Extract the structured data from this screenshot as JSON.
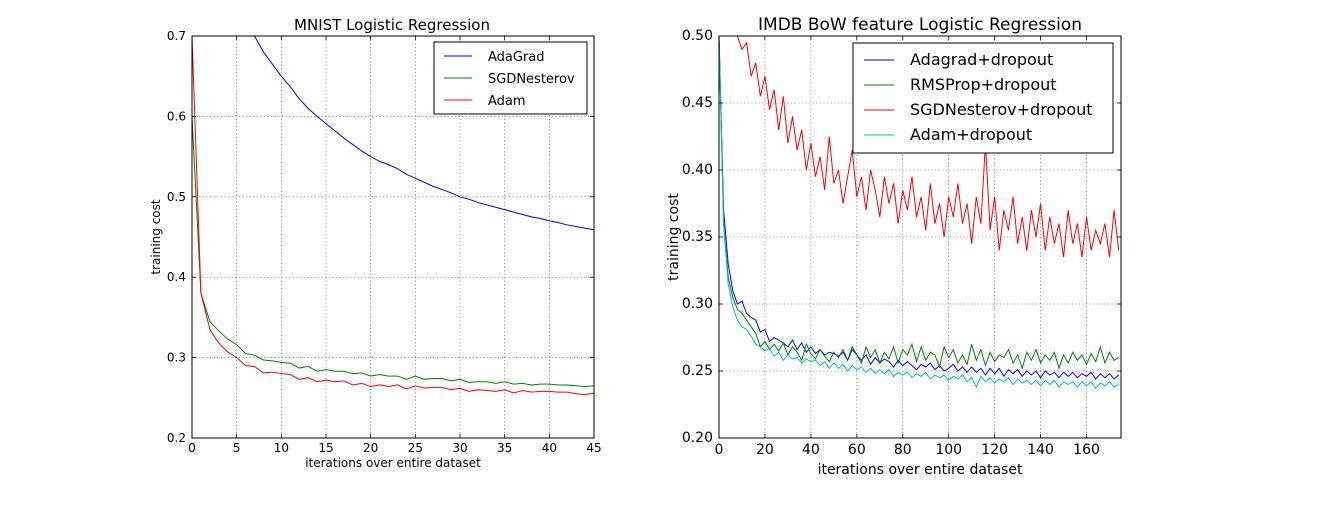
{
  "chart_data": [
    {
      "type": "line",
      "title": "MNIST Logistic Regression",
      "xlabel": "iterations over entire dataset",
      "ylabel": "training cost",
      "xlim": [
        0,
        45
      ],
      "ylim": [
        0.2,
        0.7
      ],
      "xticks": [
        "0",
        "5",
        "10",
        "15",
        "20",
        "25",
        "30",
        "35",
        "40",
        "45"
      ],
      "yticks": [
        "0.2",
        "0.3",
        "0.4",
        "0.5",
        "0.6",
        "0.7"
      ],
      "grid": true,
      "legend_position": "top-right",
      "series": [
        {
          "name": "AdaGrad",
          "color": "#0000ff",
          "x": [
            7,
            8,
            9,
            10,
            11,
            12,
            13,
            14,
            15,
            16,
            17,
            18,
            19,
            20,
            21,
            22,
            23,
            24,
            25,
            26,
            27,
            28,
            29,
            30,
            31,
            32,
            33,
            34,
            35,
            36,
            37,
            38,
            39,
            40,
            41,
            42,
            43,
            44,
            45
          ],
          "y": [
            0.7,
            0.68,
            0.665,
            0.65,
            0.637,
            0.622,
            0.61,
            0.6,
            0.591,
            0.582,
            0.573,
            0.565,
            0.557,
            0.55,
            0.544,
            0.54,
            0.535,
            0.528,
            0.523,
            0.518,
            0.513,
            0.509,
            0.505,
            0.5,
            0.497,
            0.493,
            0.49,
            0.487,
            0.484,
            0.481,
            0.478,
            0.475,
            0.473,
            0.47,
            0.468,
            0.465,
            0.463,
            0.461,
            0.459
          ]
        },
        {
          "name": "SGDNesterov",
          "color": "#008000",
          "x": [
            0,
            1,
            2,
            3,
            4,
            5,
            6,
            7,
            8,
            9,
            10,
            11,
            12,
            13,
            14,
            15,
            16,
            17,
            18,
            19,
            20,
            21,
            22,
            23,
            24,
            25,
            26,
            27,
            28,
            29,
            30,
            31,
            32,
            33,
            34,
            35,
            36,
            37,
            38,
            39,
            40,
            41,
            42,
            43,
            44,
            45
          ],
          "y": [
            0.6,
            0.38,
            0.345,
            0.333,
            0.323,
            0.316,
            0.305,
            0.303,
            0.297,
            0.296,
            0.294,
            0.293,
            0.287,
            0.289,
            0.283,
            0.285,
            0.283,
            0.283,
            0.28,
            0.281,
            0.277,
            0.279,
            0.277,
            0.277,
            0.273,
            0.277,
            0.273,
            0.274,
            0.274,
            0.271,
            0.273,
            0.269,
            0.27,
            0.27,
            0.268,
            0.27,
            0.267,
            0.268,
            0.266,
            0.267,
            0.267,
            0.266,
            0.266,
            0.265,
            0.264,
            0.265
          ]
        },
        {
          "name": "Adam",
          "color": "#ff0000",
          "x": [
            0,
            1,
            2,
            3,
            4,
            5,
            6,
            7,
            8,
            9,
            10,
            11,
            12,
            13,
            14,
            15,
            16,
            17,
            18,
            19,
            20,
            21,
            22,
            23,
            24,
            25,
            26,
            27,
            28,
            29,
            30,
            31,
            32,
            33,
            34,
            35,
            36,
            37,
            38,
            39,
            40,
            41,
            42,
            43,
            44,
            45
          ],
          "y": [
            0.7,
            0.38,
            0.335,
            0.318,
            0.307,
            0.3,
            0.29,
            0.289,
            0.281,
            0.282,
            0.28,
            0.279,
            0.273,
            0.275,
            0.27,
            0.272,
            0.27,
            0.271,
            0.266,
            0.268,
            0.264,
            0.266,
            0.264,
            0.266,
            0.261,
            0.265,
            0.262,
            0.263,
            0.263,
            0.26,
            0.262,
            0.258,
            0.26,
            0.259,
            0.258,
            0.26,
            0.256,
            0.259,
            0.257,
            0.258,
            0.258,
            0.257,
            0.257,
            0.255,
            0.254,
            0.256
          ]
        }
      ]
    },
    {
      "type": "line",
      "title": "IMDB BoW feature Logistic Regression",
      "xlabel": "iterations over entire dataset",
      "ylabel": "training cost",
      "xlim": [
        0,
        175
      ],
      "ylim": [
        0.2,
        0.5
      ],
      "xticks": [
        "0",
        "20",
        "40",
        "60",
        "80",
        "100",
        "120",
        "140",
        "160"
      ],
      "yticks": [
        "0.20",
        "0.25",
        "0.30",
        "0.35",
        "0.40",
        "0.45",
        "0.50"
      ],
      "grid": true,
      "legend_position": "top-right",
      "series": [
        {
          "name": "Adagrad+dropout",
          "color": "#0000ff",
          "x": [
            0,
            2,
            4,
            6,
            8,
            10,
            12,
            14,
            16,
            18,
            20,
            22,
            24,
            26,
            28,
            30,
            32,
            34,
            36,
            38,
            40,
            42,
            44,
            46,
            48,
            50,
            52,
            54,
            56,
            58,
            60,
            62,
            64,
            66,
            68,
            70,
            72,
            74,
            76,
            78,
            80,
            82,
            84,
            86,
            88,
            90,
            92,
            94,
            96,
            98,
            100,
            102,
            104,
            106,
            108,
            110,
            112,
            114,
            116,
            118,
            120,
            122,
            124,
            126,
            128,
            130,
            132,
            134,
            136,
            138,
            140,
            142,
            144,
            146,
            148,
            150,
            152,
            154,
            156,
            158,
            160,
            162,
            164,
            166,
            168,
            170,
            172,
            174
          ],
          "y": [
            0.5,
            0.37,
            0.33,
            0.31,
            0.3,
            0.302,
            0.293,
            0.29,
            0.288,
            0.279,
            0.281,
            0.272,
            0.275,
            0.273,
            0.271,
            0.268,
            0.273,
            0.266,
            0.271,
            0.264,
            0.268,
            0.263,
            0.266,
            0.262,
            0.264,
            0.263,
            0.261,
            0.264,
            0.258,
            0.266,
            0.262,
            0.258,
            0.262,
            0.255,
            0.26,
            0.256,
            0.259,
            0.257,
            0.253,
            0.258,
            0.254,
            0.257,
            0.254,
            0.251,
            0.255,
            0.253,
            0.256,
            0.251,
            0.254,
            0.25,
            0.252,
            0.255,
            0.25,
            0.253,
            0.249,
            0.253,
            0.249,
            0.252,
            0.247,
            0.252,
            0.248,
            0.252,
            0.246,
            0.251,
            0.248,
            0.251,
            0.246,
            0.25,
            0.247,
            0.25,
            0.245,
            0.25,
            0.247,
            0.249,
            0.245,
            0.249,
            0.246,
            0.249,
            0.245,
            0.248,
            0.246,
            0.249,
            0.244,
            0.248,
            0.245,
            0.248,
            0.244,
            0.247
          ]
        },
        {
          "name": "RMSProp+dropout",
          "color": "#008000",
          "x": [
            0,
            2,
            4,
            6,
            8,
            10,
            12,
            14,
            16,
            18,
            20,
            22,
            24,
            26,
            28,
            30,
            32,
            34,
            36,
            38,
            40,
            42,
            44,
            46,
            48,
            50,
            52,
            54,
            56,
            58,
            60,
            62,
            64,
            66,
            68,
            70,
            72,
            74,
            76,
            78,
            80,
            82,
            84,
            86,
            88,
            90,
            92,
            94,
            96,
            98,
            100,
            102,
            104,
            106,
            108,
            110,
            112,
            114,
            116,
            118,
            120,
            122,
            124,
            126,
            128,
            130,
            132,
            134,
            136,
            138,
            140,
            142,
            144,
            146,
            148,
            150,
            152,
            154,
            156,
            158,
            160,
            162,
            164,
            166,
            168,
            170,
            172,
            174
          ],
          "y": [
            0.5,
            0.36,
            0.32,
            0.305,
            0.296,
            0.293,
            0.288,
            0.283,
            0.278,
            0.268,
            0.272,
            0.266,
            0.27,
            0.265,
            0.271,
            0.262,
            0.268,
            0.264,
            0.258,
            0.27,
            0.263,
            0.259,
            0.266,
            0.261,
            0.257,
            0.264,
            0.26,
            0.266,
            0.258,
            0.268,
            0.262,
            0.256,
            0.268,
            0.26,
            0.266,
            0.256,
            0.264,
            0.259,
            0.268,
            0.256,
            0.266,
            0.262,
            0.27,
            0.257,
            0.268,
            0.258,
            0.264,
            0.262,
            0.253,
            0.268,
            0.26,
            0.266,
            0.256,
            0.262,
            0.255,
            0.27,
            0.258,
            0.266,
            0.254,
            0.264,
            0.257,
            0.262,
            0.26,
            0.266,
            0.256,
            0.262,
            0.252,
            0.264,
            0.258,
            0.266,
            0.256,
            0.262,
            0.258,
            0.264,
            0.252,
            0.262,
            0.256,
            0.264,
            0.258,
            0.262,
            0.255,
            0.263,
            0.257,
            0.268,
            0.256,
            0.264,
            0.258,
            0.26
          ]
        },
        {
          "name": "SGDNesterov+dropout",
          "color": "#ff0000",
          "x": [
            8,
            10,
            12,
            14,
            16,
            18,
            20,
            22,
            24,
            26,
            28,
            30,
            32,
            34,
            36,
            38,
            40,
            42,
            44,
            46,
            48,
            50,
            52,
            54,
            56,
            58,
            60,
            62,
            64,
            66,
            68,
            70,
            72,
            74,
            76,
            78,
            80,
            82,
            84,
            86,
            88,
            90,
            92,
            94,
            96,
            98,
            100,
            102,
            104,
            106,
            108,
            110,
            112,
            114,
            116,
            118,
            120,
            122,
            124,
            126,
            128,
            130,
            132,
            134,
            136,
            138,
            140,
            142,
            144,
            146,
            148,
            150,
            152,
            154,
            156,
            158,
            160,
            162,
            164,
            166,
            168,
            170,
            172,
            174
          ],
          "y": [
            0.5,
            0.49,
            0.495,
            0.47,
            0.48,
            0.455,
            0.47,
            0.445,
            0.46,
            0.43,
            0.455,
            0.42,
            0.44,
            0.415,
            0.43,
            0.4,
            0.42,
            0.395,
            0.41,
            0.385,
            0.425,
            0.39,
            0.4,
            0.375,
            0.395,
            0.415,
            0.38,
            0.395,
            0.37,
            0.4,
            0.385,
            0.365,
            0.395,
            0.375,
            0.39,
            0.36,
            0.385,
            0.37,
            0.395,
            0.365,
            0.38,
            0.355,
            0.39,
            0.36,
            0.375,
            0.35,
            0.38,
            0.365,
            0.39,
            0.36,
            0.375,
            0.345,
            0.38,
            0.36,
            0.42,
            0.355,
            0.38,
            0.34,
            0.37,
            0.355,
            0.38,
            0.345,
            0.365,
            0.34,
            0.37,
            0.35,
            0.375,
            0.34,
            0.365,
            0.345,
            0.36,
            0.335,
            0.37,
            0.345,
            0.36,
            0.335,
            0.365,
            0.34,
            0.355,
            0.345,
            0.36,
            0.335,
            0.37,
            0.34
          ]
        },
        {
          "name": "Adam+dropout",
          "color": "#00bfbf",
          "x": [
            0,
            2,
            4,
            6,
            8,
            10,
            12,
            14,
            16,
            18,
            20,
            22,
            24,
            26,
            28,
            30,
            32,
            34,
            36,
            38,
            40,
            42,
            44,
            46,
            48,
            50,
            52,
            54,
            56,
            58,
            60,
            62,
            64,
            66,
            68,
            70,
            72,
            74,
            76,
            78,
            80,
            82,
            84,
            86,
            88,
            90,
            92,
            94,
            96,
            98,
            100,
            102,
            104,
            106,
            108,
            110,
            112,
            114,
            116,
            118,
            120,
            122,
            124,
            126,
            128,
            130,
            132,
            134,
            136,
            138,
            140,
            142,
            144,
            146,
            148,
            150,
            152,
            154,
            156,
            158,
            160,
            162,
            164,
            166,
            168,
            170,
            172,
            174
          ],
          "y": [
            0.5,
            0.36,
            0.315,
            0.298,
            0.288,
            0.283,
            0.281,
            0.276,
            0.27,
            0.268,
            0.265,
            0.267,
            0.261,
            0.264,
            0.258,
            0.262,
            0.259,
            0.26,
            0.256,
            0.259,
            0.257,
            0.258,
            0.254,
            0.257,
            0.252,
            0.256,
            0.252,
            0.255,
            0.25,
            0.254,
            0.251,
            0.253,
            0.249,
            0.252,
            0.248,
            0.251,
            0.248,
            0.251,
            0.246,
            0.249,
            0.247,
            0.249,
            0.245,
            0.248,
            0.246,
            0.249,
            0.244,
            0.247,
            0.245,
            0.247,
            0.243,
            0.246,
            0.244,
            0.247,
            0.242,
            0.245,
            0.238,
            0.246,
            0.242,
            0.245,
            0.241,
            0.244,
            0.242,
            0.245,
            0.24,
            0.244,
            0.241,
            0.243,
            0.24,
            0.243,
            0.239,
            0.243,
            0.24,
            0.243,
            0.238,
            0.242,
            0.24,
            0.242,
            0.238,
            0.242,
            0.239,
            0.242,
            0.237,
            0.241,
            0.239,
            0.242,
            0.238,
            0.24
          ]
        }
      ]
    }
  ]
}
